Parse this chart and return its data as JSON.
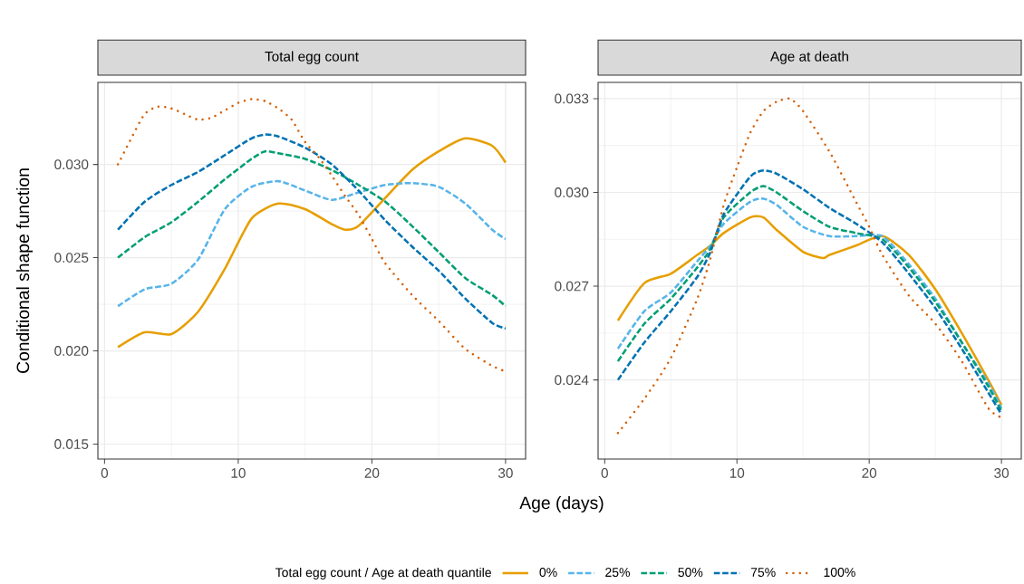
{
  "chart_data": [
    {
      "type": "line",
      "title": "Total egg count",
      "xlabel": "Age (days)",
      "ylabel": "Conditional shape function",
      "legend_title": "Total egg count / Age at death quantile",
      "legend": "bottom",
      "grid": true,
      "xlim": [
        -0.5,
        31.5
      ],
      "ylim": [
        0.0142,
        0.0344
      ],
      "xticks": [
        0,
        10,
        20,
        30
      ],
      "yticks": [
        {
          "value": 0.015,
          "label": "0.015"
        },
        {
          "value": 0.02,
          "label": "0.020"
        },
        {
          "value": 0.025,
          "label": "0.025"
        },
        {
          "value": 0.03,
          "label": "0.030"
        }
      ],
      "series": [
        {
          "name": "0%",
          "color": "#e69f00",
          "line_style": "solid",
          "x": [
            1,
            3,
            5,
            7,
            9,
            11,
            13,
            15,
            17,
            18,
            19,
            21,
            23,
            25,
            27,
            29,
            30
          ],
          "values": [
            0.0202,
            0.021,
            0.0209,
            0.0221,
            0.0244,
            0.0271,
            0.0279,
            0.0276,
            0.0268,
            0.0265,
            0.0267,
            0.0282,
            0.0297,
            0.0307,
            0.0314,
            0.031,
            0.0301
          ]
        },
        {
          "name": "25%",
          "color": "#56b4e9",
          "line_style": "dashed",
          "x": [
            1,
            3,
            5,
            7,
            9,
            11,
            13,
            15,
            17,
            19,
            21,
            23,
            25,
            27,
            29,
            30
          ],
          "values": [
            0.0224,
            0.0233,
            0.0236,
            0.0249,
            0.0276,
            0.0288,
            0.0291,
            0.0286,
            0.0281,
            0.0285,
            0.0289,
            0.029,
            0.0288,
            0.0279,
            0.0265,
            0.026
          ]
        },
        {
          "name": "50%",
          "color": "#009e73",
          "line_style": "dashed",
          "x": [
            1,
            3,
            5,
            7,
            9,
            11,
            12,
            13,
            15,
            17,
            19,
            21,
            23,
            25,
            27,
            29,
            30
          ],
          "values": [
            0.025,
            0.0261,
            0.0269,
            0.028,
            0.0292,
            0.0303,
            0.0307,
            0.0306,
            0.0303,
            0.0297,
            0.0289,
            0.028,
            0.0267,
            0.0253,
            0.0239,
            0.023,
            0.0224
          ]
        },
        {
          "name": "75%",
          "color": "#0072b2",
          "line_style": "dashed",
          "x": [
            1,
            3,
            5,
            7,
            9,
            11,
            12,
            13,
            15,
            17,
            19,
            21,
            23,
            25,
            27,
            29,
            30
          ],
          "values": [
            0.0265,
            0.028,
            0.0289,
            0.0296,
            0.0305,
            0.0314,
            0.0316,
            0.0315,
            0.0309,
            0.03,
            0.0286,
            0.027,
            0.0256,
            0.0243,
            0.0228,
            0.0215,
            0.0212
          ]
        },
        {
          "name": "100%",
          "color": "#d55e00",
          "line_style": "dotted",
          "x": [
            1,
            2,
            3,
            4,
            5,
            6,
            7,
            8,
            9,
            10,
            11,
            12,
            13,
            14,
            15,
            16,
            17,
            18,
            19,
            20,
            21,
            23,
            25,
            27,
            29,
            30
          ],
          "values": [
            0.03,
            0.0314,
            0.0327,
            0.0331,
            0.033,
            0.0327,
            0.0324,
            0.0325,
            0.0329,
            0.0333,
            0.0335,
            0.0334,
            0.033,
            0.0324,
            0.0312,
            0.0304,
            0.0294,
            0.0283,
            0.0273,
            0.026,
            0.0247,
            0.023,
            0.0216,
            0.0201,
            0.0192,
            0.0189
          ]
        }
      ]
    },
    {
      "type": "line",
      "title": "Age at death",
      "grid": true,
      "xlim": [
        -0.5,
        31.5
      ],
      "ylim": [
        0.02147,
        0.03352
      ],
      "xticks": [
        0,
        10,
        20,
        30
      ],
      "yticks": [
        {
          "value": 0.024,
          "label": "0.024"
        },
        {
          "value": 0.027,
          "label": "0.027"
        },
        {
          "value": 0.03,
          "label": "0.030"
        },
        {
          "value": 0.033,
          "label": "0.033"
        }
      ],
      "series": [
        {
          "color": "#e69f00",
          "line_style": "solid",
          "x": [
            1,
            3,
            5,
            7,
            8,
            9,
            11,
            12,
            13,
            15,
            16.5,
            17,
            19,
            21,
            23,
            25,
            27,
            29,
            30
          ],
          "values": [
            0.0259,
            0.0271,
            0.0274,
            0.028,
            0.0283,
            0.0287,
            0.0292,
            0.0292,
            0.0288,
            0.0281,
            0.0279,
            0.028,
            0.0283,
            0.0286,
            0.028,
            0.0269,
            0.0255,
            0.024,
            0.0232
          ]
        },
        {
          "color": "#56b4e9",
          "line_style": "dashed",
          "x": [
            1,
            3,
            5,
            7,
            8,
            9,
            11,
            12,
            13,
            15,
            17,
            19,
            21,
            23,
            25,
            27,
            29,
            30
          ],
          "values": [
            0.025,
            0.0262,
            0.0268,
            0.0278,
            0.0283,
            0.029,
            0.0297,
            0.0298,
            0.0296,
            0.0289,
            0.0286,
            0.0286,
            0.0286,
            0.0277,
            0.0266,
            0.0252,
            0.0239,
            0.0231
          ]
        },
        {
          "color": "#009e73",
          "line_style": "dashed",
          "x": [
            1,
            3,
            5,
            7,
            8,
            9,
            11,
            12,
            13,
            15,
            17,
            19,
            21,
            23,
            25,
            27,
            29,
            30
          ],
          "values": [
            0.0246,
            0.0258,
            0.0266,
            0.0276,
            0.0282,
            0.0292,
            0.03,
            0.0302,
            0.03,
            0.0294,
            0.0289,
            0.0287,
            0.0285,
            0.0276,
            0.0265,
            0.0252,
            0.0238,
            0.023
          ]
        },
        {
          "color": "#0072b2",
          "line_style": "dashed",
          "x": [
            1,
            3,
            5,
            7,
            8,
            9,
            11,
            12,
            13,
            15,
            17,
            19,
            21,
            23,
            25,
            27,
            29,
            30
          ],
          "values": [
            0.024,
            0.0252,
            0.0262,
            0.0273,
            0.0281,
            0.0293,
            0.0305,
            0.0307,
            0.0306,
            0.0301,
            0.0295,
            0.029,
            0.0284,
            0.0274,
            0.0263,
            0.025,
            0.0236,
            0.0229
          ]
        },
        {
          "color": "#d55e00",
          "line_style": "dotted",
          "x": [
            1,
            3,
            5,
            7,
            8,
            9,
            10,
            11,
            12,
            13,
            14,
            15,
            17,
            19,
            20,
            21,
            23,
            25,
            27,
            29,
            30
          ],
          "values": [
            0.0223,
            0.0234,
            0.0247,
            0.0266,
            0.0279,
            0.0296,
            0.0308,
            0.0319,
            0.0326,
            0.0329,
            0.033,
            0.0326,
            0.0313,
            0.0297,
            0.0289,
            0.028,
            0.0267,
            0.0258,
            0.0246,
            0.0231,
            0.0228
          ]
        }
      ]
    }
  ]
}
